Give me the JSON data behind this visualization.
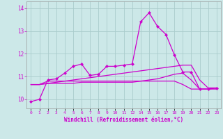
{
  "xlabel": "Windchill (Refroidissement éolien,°C)",
  "background_color": "#cce8e8",
  "grid_color": "#aacccc",
  "line_color": "#cc00cc",
  "x_values": [
    0,
    1,
    2,
    3,
    4,
    5,
    6,
    7,
    8,
    9,
    10,
    11,
    12,
    14,
    15,
    16,
    17,
    18,
    19,
    20,
    21,
    22,
    23
  ],
  "x_tick_labels": [
    "0",
    "1",
    "2",
    "3",
    "4",
    "5",
    "6",
    "7",
    "8",
    "9",
    "10",
    "11",
    "12",
    "14",
    "15",
    "16",
    "17",
    "18",
    "19",
    "20",
    "21",
    "22",
    "23"
  ],
  "ylim": [
    9.6,
    14.3
  ],
  "yticks": [
    10,
    11,
    12,
    13,
    14
  ],
  "series": [
    {
      "y": [
        9.9,
        10.0,
        10.85,
        10.9,
        11.15,
        11.45,
        11.55,
        11.05,
        11.1,
        11.45,
        11.45,
        11.5,
        11.55,
        13.4,
        13.8,
        13.2,
        12.85,
        11.95,
        11.2,
        11.2,
        10.45,
        10.45,
        10.5
      ],
      "marker": true
    },
    {
      "y": [
        10.65,
        10.65,
        10.8,
        10.8,
        10.8,
        10.8,
        10.8,
        10.8,
        10.8,
        10.8,
        10.8,
        10.8,
        10.8,
        10.8,
        10.8,
        10.8,
        10.8,
        10.8,
        10.65,
        10.45,
        10.45,
        10.45,
        10.45
      ],
      "marker": false
    },
    {
      "y": [
        10.65,
        10.65,
        10.7,
        10.7,
        10.7,
        10.7,
        10.75,
        10.75,
        10.75,
        10.75,
        10.75,
        10.75,
        10.75,
        10.8,
        10.85,
        10.9,
        11.0,
        11.1,
        11.15,
        10.85,
        10.45,
        10.45,
        10.5
      ],
      "marker": false
    },
    {
      "y": [
        10.65,
        10.65,
        10.7,
        10.75,
        10.8,
        10.85,
        10.9,
        10.95,
        11.0,
        11.05,
        11.1,
        11.15,
        11.2,
        11.25,
        11.3,
        11.35,
        11.4,
        11.45,
        11.5,
        11.5,
        10.85,
        10.5,
        10.5
      ],
      "marker": false
    }
  ]
}
